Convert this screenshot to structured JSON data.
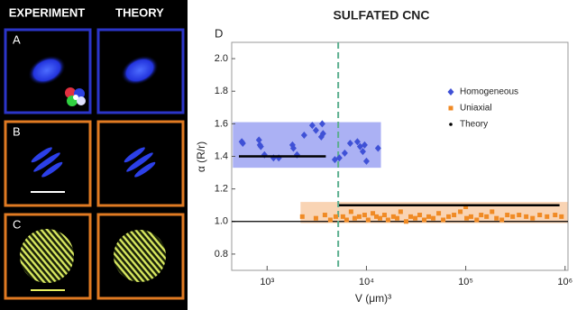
{
  "panel": {
    "headers": [
      "EXPERIMENT",
      "THEORY"
    ],
    "labels": [
      "A",
      "B",
      "C"
    ]
  },
  "chart_data": {
    "type": "scatter",
    "title": "SULFATED CNC",
    "panel_label": "D",
    "x_label": "V (μm)³",
    "y_label": "α (R/r)",
    "xscale": "log",
    "xlim": [
      440,
      1070000
    ],
    "ylim": [
      0.7,
      2.1
    ],
    "xticks": [
      {
        "value": 1000,
        "label": "10³"
      },
      {
        "value": 10000,
        "label": "10⁴"
      },
      {
        "value": 100000,
        "label": "10⁵"
      },
      {
        "value": 1000000,
        "label": "10⁶"
      }
    ],
    "yticks": [
      0.8,
      {
        "value": 1,
        "label": "1.0"
      },
      1.2,
      1.4,
      1.6,
      1.8,
      {
        "value": 2,
        "label": "2.0"
      }
    ],
    "legend": "upper right",
    "bands": [
      {
        "x": [
          452,
          14000
        ],
        "y": [
          1.33,
          1.61
        ],
        "color": "#8f97f0"
      },
      {
        "x": [
          2170,
          1070000
        ],
        "y": [
          0.99,
          1.12
        ],
        "color": "#f7c59b"
      }
    ],
    "vline": 5200,
    "vline_color": "#5aae8e",
    "hline": 1,
    "series": [
      {
        "name": "Homogeneous",
        "color": "#3f51d6",
        "marker": "diamond",
        "x": [
          556,
          569,
          828,
          846,
          864,
          940,
          1160,
          1310,
          1800,
          1840,
          2000,
          2360,
          2850,
          3100,
          3510,
          3590,
          3660,
          4810,
          5330,
          6050,
          6860,
          8110,
          8630,
          9590,
          10000,
          13100,
          9200
        ],
        "values": [
          1.49,
          1.48,
          1.5,
          1.47,
          1.46,
          1.41,
          1.39,
          1.39,
          1.47,
          1.45,
          1.41,
          1.53,
          1.59,
          1.56,
          1.52,
          1.6,
          1.54,
          1.38,
          1.39,
          1.42,
          1.48,
          1.49,
          1.46,
          1.47,
          1.37,
          1.45,
          1.43
        ]
      },
      {
        "name": "Uniaxial",
        "color": "#f08a24",
        "marker": "square",
        "x": [
          2260,
          3100,
          3820,
          4330,
          4910,
          5800,
          6310,
          7000,
          7620,
          8460,
          9590,
          10400,
          11600,
          12600,
          13700,
          15200,
          16500,
          18700,
          20400,
          22100,
          25100,
          27900,
          31000,
          34400,
          38200,
          42400,
          47100,
          53400,
          59300,
          67200,
          76200,
          88200,
          102000,
          113000,
          129000,
          143000,
          162000,
          184000,
          204000,
          231000,
          262000,
          297000,
          344000,
          406000,
          471000,
          556000,
          658000,
          794000,
          920000,
          100000
        ],
        "values": [
          1.03,
          1.02,
          1.04,
          1.01,
          1.03,
          1.03,
          1.01,
          1.06,
          1.02,
          1.03,
          1.04,
          1.01,
          1.05,
          1.03,
          1.02,
          1.04,
          1.01,
          1.03,
          1.02,
          1.06,
          1.0,
          1.03,
          1.02,
          1.04,
          1.01,
          1.03,
          1.02,
          1.05,
          1.01,
          1.03,
          1.04,
          1.06,
          1.02,
          1.03,
          1.01,
          1.04,
          1.03,
          1.06,
          1.02,
          1.01,
          1.04,
          1.03,
          1.04,
          1.03,
          1.02,
          1.04,
          1.03,
          1.04,
          1.03,
          1.09
        ]
      },
      {
        "name": "Theory",
        "color": "#000000",
        "marker": "line",
        "x": [
          520,
          3900,
          4600,
          5300,
          880000
        ],
        "values": [
          1.4,
          1.4,
          null,
          1.1,
          1.1
        ]
      }
    ]
  }
}
